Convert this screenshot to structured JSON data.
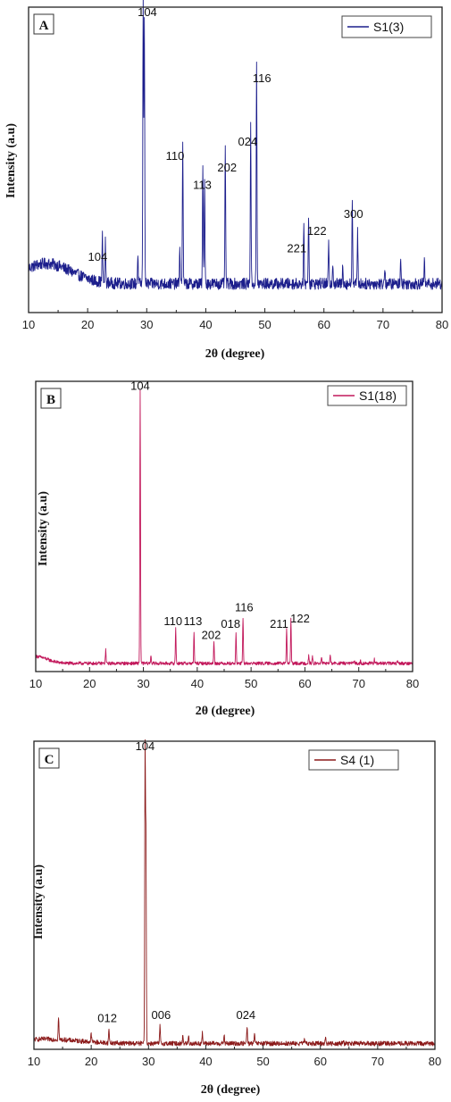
{
  "chart_data": [
    {
      "type": "line",
      "panel_label": "A",
      "legend": "S1(3)",
      "series_name": "S1(3)",
      "color": "#1c1e8c",
      "xlabel": "2θ (degree)",
      "ylabel": "Intensity (a.u)",
      "xlim": [
        10,
        80
      ],
      "xticks": [
        "10",
        "20",
        "30",
        "40",
        "50",
        "60",
        "70",
        "80"
      ],
      "baseline": 0.1,
      "hump": {
        "center": 13,
        "height": 0.07,
        "width": 6
      },
      "noise": 0.02,
      "peaks": [
        {
          "x": 22.5,
          "y": 0.16
        },
        {
          "x": 23.0,
          "y": 0.14
        },
        {
          "x": 28.5,
          "y": 0.1
        },
        {
          "x": 29.4,
          "y": 1.0
        },
        {
          "x": 29.6,
          "y": 0.93
        },
        {
          "x": 35.6,
          "y": 0.12
        },
        {
          "x": 36.1,
          "y": 0.5
        },
        {
          "x": 39.5,
          "y": 0.4
        },
        {
          "x": 39.8,
          "y": 0.36
        },
        {
          "x": 43.3,
          "y": 0.46
        },
        {
          "x": 47.6,
          "y": 0.56
        },
        {
          "x": 48.6,
          "y": 0.76
        },
        {
          "x": 56.6,
          "y": 0.19
        },
        {
          "x": 57.4,
          "y": 0.24
        },
        {
          "x": 60.8,
          "y": 0.14
        },
        {
          "x": 61.5,
          "y": 0.08
        },
        {
          "x": 63.2,
          "y": 0.07
        },
        {
          "x": 64.8,
          "y": 0.3
        },
        {
          "x": 65.7,
          "y": 0.18
        },
        {
          "x": 70.3,
          "y": 0.06
        },
        {
          "x": 73.0,
          "y": 0.1
        },
        {
          "x": 77.0,
          "y": 0.08
        }
      ],
      "peak_labels": [
        {
          "x": 21.7,
          "y": 0.17,
          "text": "104"
        },
        {
          "x": 30.1,
          "y": 1.02,
          "text": "104"
        },
        {
          "x": 34.8,
          "y": 0.52,
          "text": "110"
        },
        {
          "x": 39.4,
          "y": 0.42,
          "text": "113"
        },
        {
          "x": 43.6,
          "y": 0.48,
          "text": "202"
        },
        {
          "x": 47.1,
          "y": 0.57,
          "text": "024"
        },
        {
          "x": 49.5,
          "y": 0.79,
          "text": "116"
        },
        {
          "x": 55.4,
          "y": 0.2,
          "text": "221"
        },
        {
          "x": 58.8,
          "y": 0.26,
          "text": "122"
        },
        {
          "x": 65.0,
          "y": 0.32,
          "text": "300"
        }
      ],
      "ylim": [
        0,
        1.06
      ]
    },
    {
      "type": "line",
      "panel_label": "B",
      "legend": "S1(18)",
      "series_name": "S1(18)",
      "color": "#c2185b",
      "xlabel": "2θ (degree)",
      "ylabel": "Intensity (a.u)",
      "xlim": [
        10,
        80
      ],
      "xticks": [
        "10",
        "20",
        "30",
        "40",
        "50",
        "60",
        "70",
        "80"
      ],
      "baseline": 0.03,
      "hump": {
        "center": 10,
        "height": 0.025,
        "width": 3
      },
      "noise": 0.006,
      "peaks": [
        {
          "x": 23.0,
          "y": 0.05
        },
        {
          "x": 29.4,
          "y": 1.0
        },
        {
          "x": 31.4,
          "y": 0.03
        },
        {
          "x": 36.0,
          "y": 0.13
        },
        {
          "x": 39.4,
          "y": 0.11
        },
        {
          "x": 43.1,
          "y": 0.08
        },
        {
          "x": 47.2,
          "y": 0.11
        },
        {
          "x": 48.5,
          "y": 0.17
        },
        {
          "x": 56.6,
          "y": 0.13
        },
        {
          "x": 57.4,
          "y": 0.16
        },
        {
          "x": 60.7,
          "y": 0.03
        },
        {
          "x": 61.4,
          "y": 0.025
        },
        {
          "x": 63.1,
          "y": 0.025
        },
        {
          "x": 64.7,
          "y": 0.03
        },
        {
          "x": 69.2,
          "y": 0.01
        },
        {
          "x": 70.3,
          "y": 0.01
        },
        {
          "x": 72.9,
          "y": 0.015
        },
        {
          "x": 77.2,
          "y": 0.01
        }
      ],
      "peak_labels": [
        {
          "x": 29.4,
          "y": 1.02,
          "text": "104"
        },
        {
          "x": 35.5,
          "y": 0.16,
          "text": "110"
        },
        {
          "x": 39.2,
          "y": 0.16,
          "text": "113"
        },
        {
          "x": 42.6,
          "y": 0.11,
          "text": "202"
        },
        {
          "x": 46.2,
          "y": 0.15,
          "text": "018"
        },
        {
          "x": 48.7,
          "y": 0.21,
          "text": "116"
        },
        {
          "x": 55.2,
          "y": 0.15,
          "text": "211"
        },
        {
          "x": 59.1,
          "y": 0.17,
          "text": "122"
        }
      ],
      "ylim": [
        0,
        1.06
      ]
    },
    {
      "type": "line",
      "panel_label": "C",
      "legend": "S4 (1)",
      "series_name": "S4 (1)",
      "color": "#8b1a1a",
      "xlabel": "2θ (degree)",
      "ylabel": "Intensity (a.u)",
      "xlim": [
        10,
        80
      ],
      "xticks": [
        "10",
        "20",
        "30",
        "40",
        "50",
        "60",
        "70",
        "80"
      ],
      "baseline": 0.02,
      "hump": {
        "center": 12,
        "height": 0.015,
        "width": 8
      },
      "noise": 0.008,
      "peaks": [
        {
          "x": 14.3,
          "y": 0.08
        },
        {
          "x": 20.0,
          "y": 0.03
        },
        {
          "x": 23.1,
          "y": 0.05
        },
        {
          "x": 29.4,
          "y": 1.0
        },
        {
          "x": 29.55,
          "y": 0.7
        },
        {
          "x": 32.0,
          "y": 0.06
        },
        {
          "x": 36.0,
          "y": 0.03
        },
        {
          "x": 37.0,
          "y": 0.025
        },
        {
          "x": 39.4,
          "y": 0.035
        },
        {
          "x": 43.2,
          "y": 0.03
        },
        {
          "x": 47.2,
          "y": 0.06
        },
        {
          "x": 48.5,
          "y": 0.035
        },
        {
          "x": 57.2,
          "y": 0.015
        },
        {
          "x": 60.9,
          "y": 0.025
        },
        {
          "x": 64.0,
          "y": 0.01
        }
      ],
      "peak_labels": [
        {
          "x": 22.8,
          "y": 0.085,
          "text": "012"
        },
        {
          "x": 32.2,
          "y": 0.095,
          "text": "006"
        },
        {
          "x": 47.0,
          "y": 0.095,
          "text": "024"
        },
        {
          "x": 29.4,
          "y": 1.02,
          "text": "104"
        }
      ],
      "ylim": [
        0,
        1.06
      ]
    }
  ]
}
